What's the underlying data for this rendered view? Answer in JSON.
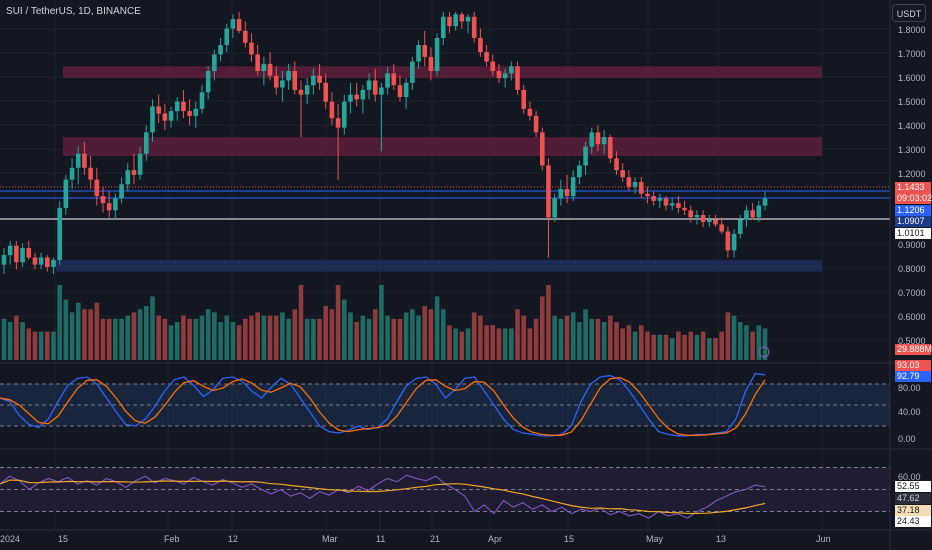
{
  "header": {
    "symbol_line": "SUI / TetherUS, 1D, BINANCE",
    "unit": "USDT"
  },
  "colors": {
    "up": "#26a69a",
    "down": "#ef5350",
    "zone_red": "#5d1f3a",
    "zone_blue": "#1e2e5c",
    "stoch_k": "#2962ff",
    "stoch_d": "#ff6d00",
    "rsi": "#7e57c2",
    "rsi_ma": "#f5a623"
  },
  "price_axis": [
    "1.8000",
    "1.7000",
    "1.6000",
    "1.5000",
    "1.4000",
    "1.3000",
    "1.2000",
    "0.9000",
    "0.8000",
    "0.7000",
    "0.6000",
    "0.5000"
  ],
  "price_tags": {
    "last_price": "1.1433",
    "countdown": "09:03:02",
    "level_1": "1.1206",
    "level_2": "1.0907",
    "level_3": "1.0101",
    "volume": "29.888M"
  },
  "stoch_axis": [
    "80.00",
    "40.00",
    "0.00"
  ],
  "stoch_tags": {
    "k": "93.03",
    "d": "92.79"
  },
  "rsi_axis": [
    "60.00"
  ],
  "rsi_tags": {
    "rsi": "52.55",
    "level_a": "47.62",
    "level_b": "37.18",
    "level_c": "24.43"
  },
  "time_axis": [
    "2024",
    "15",
    "Feb",
    "12",
    "Mar",
    "11",
    "21",
    "Apr",
    "15",
    "May",
    "13",
    "Jun"
  ],
  "chart_data": {
    "type": "candlestick",
    "title": "SUI / TetherUS, 1D, BINANCE",
    "price_range": [
      0.46,
      1.93
    ],
    "zones": [
      {
        "kind": "resistance",
        "low": 1.65,
        "high": 1.7
      },
      {
        "kind": "resistance",
        "low": 1.32,
        "high": 1.4
      },
      {
        "kind": "support",
        "low": 0.83,
        "high": 0.88
      }
    ],
    "horizontal_levels": [
      1.1433,
      1.1206,
      1.0907
    ],
    "candles": [
      [
        0.86,
        0.93,
        0.82,
        0.9
      ],
      [
        0.9,
        0.96,
        0.86,
        0.94
      ],
      [
        0.94,
        0.96,
        0.84,
        0.87
      ],
      [
        0.87,
        0.95,
        0.85,
        0.93
      ],
      [
        0.93,
        0.96,
        0.88,
        0.89
      ],
      [
        0.89,
        0.91,
        0.84,
        0.86
      ],
      [
        0.86,
        0.91,
        0.84,
        0.89
      ],
      [
        0.89,
        0.9,
        0.83,
        0.85
      ],
      [
        0.85,
        0.89,
        0.82,
        0.88
      ],
      [
        0.88,
        1.13,
        0.86,
        1.1
      ],
      [
        1.1,
        1.24,
        1.07,
        1.22
      ],
      [
        1.22,
        1.31,
        1.18,
        1.27
      ],
      [
        1.27,
        1.36,
        1.2,
        1.33
      ],
      [
        1.33,
        1.38,
        1.24,
        1.27
      ],
      [
        1.27,
        1.32,
        1.18,
        1.22
      ],
      [
        1.22,
        1.27,
        1.11,
        1.15
      ],
      [
        1.15,
        1.19,
        1.08,
        1.12
      ],
      [
        1.12,
        1.17,
        1.06,
        1.09
      ],
      [
        1.09,
        1.16,
        1.05,
        1.14
      ],
      [
        1.14,
        1.23,
        1.12,
        1.2
      ],
      [
        1.2,
        1.29,
        1.17,
        1.26
      ],
      [
        1.26,
        1.33,
        1.2,
        1.24
      ],
      [
        1.24,
        1.36,
        1.22,
        1.33
      ],
      [
        1.33,
        1.45,
        1.3,
        1.42
      ],
      [
        1.42,
        1.56,
        1.38,
        1.53
      ],
      [
        1.53,
        1.58,
        1.46,
        1.5
      ],
      [
        1.5,
        1.54,
        1.43,
        1.47
      ],
      [
        1.47,
        1.53,
        1.44,
        1.51
      ],
      [
        1.51,
        1.57,
        1.47,
        1.55
      ],
      [
        1.55,
        1.6,
        1.48,
        1.51
      ],
      [
        1.51,
        1.56,
        1.45,
        1.49
      ],
      [
        1.49,
        1.55,
        1.44,
        1.52
      ],
      [
        1.52,
        1.62,
        1.5,
        1.59
      ],
      [
        1.59,
        1.7,
        1.56,
        1.68
      ],
      [
        1.68,
        1.77,
        1.64,
        1.75
      ],
      [
        1.75,
        1.82,
        1.72,
        1.79
      ],
      [
        1.79,
        1.88,
        1.76,
        1.86
      ],
      [
        1.86,
        1.92,
        1.82,
        1.9
      ],
      [
        1.9,
        1.93,
        1.84,
        1.85
      ],
      [
        1.85,
        1.89,
        1.78,
        1.8
      ],
      [
        1.8,
        1.84,
        1.72,
        1.75
      ],
      [
        1.75,
        1.79,
        1.66,
        1.68
      ],
      [
        1.68,
        1.74,
        1.62,
        1.71
      ],
      [
        1.71,
        1.76,
        1.64,
        1.66
      ],
      [
        1.66,
        1.7,
        1.58,
        1.61
      ],
      [
        1.61,
        1.68,
        1.55,
        1.64
      ],
      [
        1.64,
        1.71,
        1.6,
        1.68
      ],
      [
        1.68,
        1.72,
        1.58,
        1.6
      ],
      [
        1.6,
        1.64,
        1.4,
        1.58
      ],
      [
        1.58,
        1.65,
        1.54,
        1.62
      ],
      [
        1.62,
        1.69,
        1.58,
        1.66
      ],
      [
        1.66,
        1.71,
        1.6,
        1.63
      ],
      [
        1.63,
        1.67,
        1.52,
        1.55
      ],
      [
        1.55,
        1.59,
        1.45,
        1.48
      ],
      [
        1.48,
        1.54,
        1.22,
        1.44
      ],
      [
        1.44,
        1.58,
        1.41,
        1.55
      ],
      [
        1.55,
        1.63,
        1.5,
        1.58
      ],
      [
        1.58,
        1.63,
        1.53,
        1.56
      ],
      [
        1.56,
        1.62,
        1.5,
        1.6
      ],
      [
        1.6,
        1.67,
        1.56,
        1.64
      ],
      [
        1.64,
        1.69,
        1.55,
        1.58
      ],
      [
        1.58,
        1.63,
        1.34,
        1.61
      ],
      [
        1.61,
        1.7,
        1.58,
        1.67
      ],
      [
        1.67,
        1.71,
        1.6,
        1.62
      ],
      [
        1.62,
        1.66,
        1.55,
        1.57
      ],
      [
        1.57,
        1.65,
        1.52,
        1.63
      ],
      [
        1.63,
        1.74,
        1.6,
        1.72
      ],
      [
        1.72,
        1.81,
        1.69,
        1.79
      ],
      [
        1.79,
        1.85,
        1.7,
        1.74
      ],
      [
        1.74,
        1.78,
        1.64,
        1.68
      ],
      [
        1.68,
        1.84,
        1.66,
        1.82
      ],
      [
        1.82,
        1.93,
        1.79,
        1.91
      ],
      [
        1.91,
        1.93,
        1.84,
        1.87
      ],
      [
        1.87,
        1.93,
        1.85,
        1.92
      ],
      [
        1.92,
        1.93,
        1.86,
        1.89
      ],
      [
        1.89,
        1.92,
        1.84,
        1.91
      ],
      [
        1.91,
        1.93,
        1.8,
        1.82
      ],
      [
        1.82,
        1.86,
        1.74,
        1.76
      ],
      [
        1.76,
        1.79,
        1.7,
        1.72
      ],
      [
        1.72,
        1.75,
        1.66,
        1.68
      ],
      [
        1.68,
        1.71,
        1.63,
        1.65
      ],
      [
        1.65,
        1.69,
        1.61,
        1.67
      ],
      [
        1.67,
        1.72,
        1.64,
        1.7
      ],
      [
        1.7,
        1.72,
        1.58,
        1.6
      ],
      [
        1.6,
        1.62,
        1.5,
        1.52
      ],
      [
        1.52,
        1.55,
        1.47,
        1.49
      ],
      [
        1.49,
        1.51,
        1.4,
        1.42
      ],
      [
        1.42,
        1.44,
        1.26,
        1.28
      ],
      [
        1.28,
        1.31,
        0.89,
        1.06
      ],
      [
        1.06,
        1.16,
        1.04,
        1.14
      ],
      [
        1.14,
        1.22,
        1.11,
        1.18
      ],
      [
        1.18,
        1.24,
        1.12,
        1.15
      ],
      [
        1.15,
        1.26,
        1.13,
        1.23
      ],
      [
        1.23,
        1.3,
        1.2,
        1.28
      ],
      [
        1.28,
        1.38,
        1.24,
        1.36
      ],
      [
        1.36,
        1.44,
        1.33,
        1.42
      ],
      [
        1.42,
        1.45,
        1.34,
        1.37
      ],
      [
        1.37,
        1.43,
        1.33,
        1.4
      ],
      [
        1.4,
        1.41,
        1.29,
        1.31
      ],
      [
        1.31,
        1.34,
        1.24,
        1.26
      ],
      [
        1.26,
        1.29,
        1.21,
        1.23
      ],
      [
        1.23,
        1.26,
        1.17,
        1.19
      ],
      [
        1.19,
        1.23,
        1.16,
        1.21
      ],
      [
        1.21,
        1.23,
        1.14,
        1.16
      ],
      [
        1.16,
        1.19,
        1.12,
        1.15
      ],
      [
        1.15,
        1.17,
        1.11,
        1.13
      ],
      [
        1.13,
        1.16,
        1.1,
        1.14
      ],
      [
        1.14,
        1.15,
        1.09,
        1.11
      ],
      [
        1.11,
        1.14,
        1.09,
        1.12
      ],
      [
        1.12,
        1.15,
        1.08,
        1.1
      ],
      [
        1.1,
        1.13,
        1.07,
        1.09
      ],
      [
        1.09,
        1.11,
        1.04,
        1.06
      ],
      [
        1.06,
        1.09,
        1.03,
        1.07
      ],
      [
        1.07,
        1.09,
        1.02,
        1.04
      ],
      [
        1.04,
        1.07,
        1.02,
        1.05
      ],
      [
        1.05,
        1.07,
        1.02,
        1.03
      ],
      [
        1.03,
        1.06,
        0.99,
        1.0
      ],
      [
        1.0,
        1.02,
        0.89,
        0.92
      ],
      [
        0.92,
        1.01,
        0.89,
        0.99
      ],
      [
        0.99,
        1.07,
        0.97,
        1.05
      ],
      [
        1.05,
        1.11,
        1.02,
        1.09
      ],
      [
        1.09,
        1.12,
        1.05,
        1.06
      ],
      [
        1.06,
        1.13,
        1.04,
        1.11
      ],
      [
        1.11,
        1.17,
        1.09,
        1.14
      ]
    ],
    "volume_label": "29.888M",
    "stochastic": {
      "k_last": 93.03,
      "d_last": 92.79,
      "levels": [
        80,
        20
      ]
    },
    "rsi": {
      "last": 52.55,
      "levels": [
        70,
        30
      ]
    }
  }
}
